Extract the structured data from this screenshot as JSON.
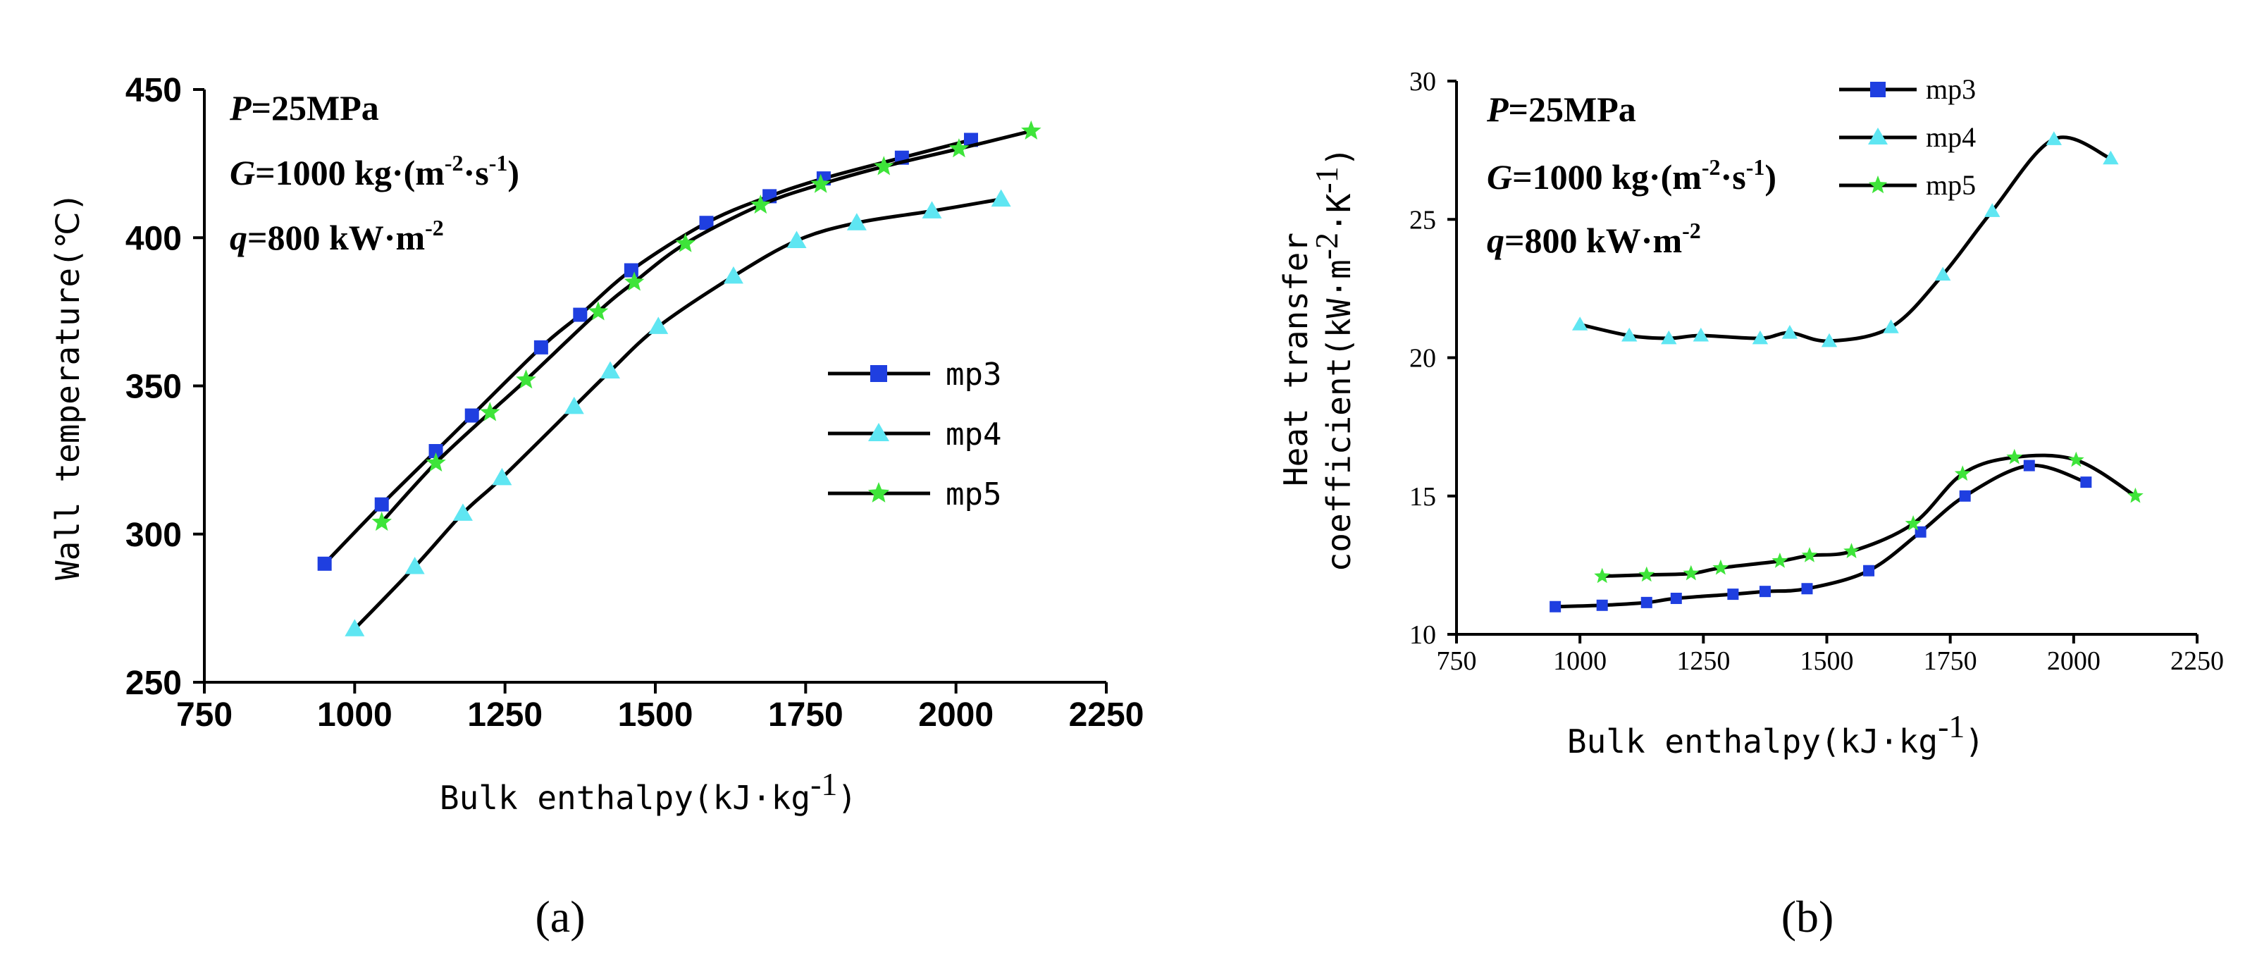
{
  "chart_data": [
    {
      "type": "line",
      "panel_label": "(a)",
      "xlabel": "Bulk enthalpy(kJ·kg",
      "xlabel_unit_sup": "-1",
      "xlabel_end": ")",
      "ylabel": "Wall temperature(℃)",
      "xlim": [
        750,
        2250
      ],
      "ylim": [
        250,
        450
      ],
      "xticks": [
        750,
        1000,
        1250,
        1500,
        1750,
        2000,
        2250
      ],
      "yticks": [
        250,
        300,
        350,
        400,
        450
      ],
      "annotations": {
        "p": {
          "sym": "P",
          "rest": "=25MPa"
        },
        "g": {
          "sym": "G",
          "rest": "=1000 kg·(m",
          "sup1": "-2",
          "mid": "·s",
          "sup2": "-1",
          "end": ")"
        },
        "q": {
          "sym": "q",
          "rest": "=800 kW·m",
          "sup": "-2"
        }
      },
      "legend": [
        "mp3",
        "mp4",
        "mp5"
      ],
      "series": [
        {
          "name": "mp3",
          "color": "#1f3fe0",
          "marker": "square",
          "x": [
            950,
            1045,
            1135,
            1195,
            1310,
            1375,
            1460,
            1585,
            1690,
            1780,
            1910,
            2025
          ],
          "y": [
            290,
            310,
            328,
            340,
            363,
            374,
            389,
            405,
            414,
            420,
            427,
            433
          ]
        },
        {
          "name": "mp4",
          "color": "#5fe6f2",
          "marker": "triangle",
          "x": [
            1000,
            1100,
            1180,
            1245,
            1365,
            1425,
            1505,
            1630,
            1735,
            1835,
            1960,
            2075
          ],
          "y": [
            268,
            289,
            307,
            319,
            343,
            355,
            370,
            387,
            399,
            405,
            409,
            413
          ]
        },
        {
          "name": "mp5",
          "color": "#3ee43a",
          "marker": "star",
          "x": [
            1045,
            1135,
            1225,
            1285,
            1405,
            1465,
            1550,
            1675,
            1775,
            1880,
            2005,
            2125
          ],
          "y": [
            304,
            324,
            341,
            352,
            375,
            385,
            398,
            411,
            418,
            424,
            430,
            436
          ]
        }
      ]
    },
    {
      "type": "line",
      "panel_label": "(b)",
      "xlabel": "Bulk enthalpy(kJ·kg",
      "xlabel_unit_sup": "-1",
      "xlabel_end": ")",
      "ylabel_line1": "Heat transfer",
      "ylabel_line2": "coefficient(kW·m",
      "ylabel_sup1": "-2",
      "ylabel_mid": "·K",
      "ylabel_sup2": "-1",
      "ylabel_end": ")",
      "xlim": [
        750,
        2250
      ],
      "ylim": [
        10,
        30
      ],
      "xticks": [
        750,
        1000,
        1250,
        1500,
        1750,
        2000,
        2250
      ],
      "yticks": [
        10,
        15,
        20,
        25,
        30
      ],
      "annotations": {
        "p": {
          "sym": "P",
          "rest": "=25MPa"
        },
        "g": {
          "sym": "G",
          "rest": "=1000 kg·(m",
          "sup1": "-2",
          "mid": "·s",
          "sup2": "-1",
          "end": ")"
        },
        "q": {
          "sym": "q",
          "rest": "=800 kW·m",
          "sup": "-2"
        }
      },
      "legend": [
        "mp3",
        "mp4",
        "mp5"
      ],
      "series": [
        {
          "name": "mp3",
          "color": "#1f3fe0",
          "marker": "square",
          "x": [
            950,
            1045,
            1135,
            1195,
            1310,
            1375,
            1460,
            1585,
            1690,
            1780,
            1910,
            2025
          ],
          "y": [
            11.0,
            11.05,
            11.15,
            11.3,
            11.45,
            11.55,
            11.65,
            12.3,
            13.7,
            15.0,
            16.1,
            15.5
          ]
        },
        {
          "name": "mp4",
          "color": "#5fe6f2",
          "marker": "triangle",
          "x": [
            1000,
            1100,
            1180,
            1245,
            1365,
            1425,
            1505,
            1630,
            1735,
            1835,
            1960,
            2075
          ],
          "y": [
            21.2,
            20.8,
            20.7,
            20.8,
            20.7,
            20.9,
            20.6,
            21.1,
            23.0,
            25.3,
            27.9,
            27.2
          ]
        },
        {
          "name": "mp5",
          "color": "#3ee43a",
          "marker": "star",
          "x": [
            1045,
            1135,
            1225,
            1285,
            1405,
            1465,
            1550,
            1675,
            1775,
            1880,
            2005,
            2125
          ],
          "y": [
            12.1,
            12.15,
            12.2,
            12.4,
            12.65,
            12.85,
            13.0,
            14.0,
            15.8,
            16.4,
            16.3,
            15.0
          ]
        }
      ]
    }
  ]
}
